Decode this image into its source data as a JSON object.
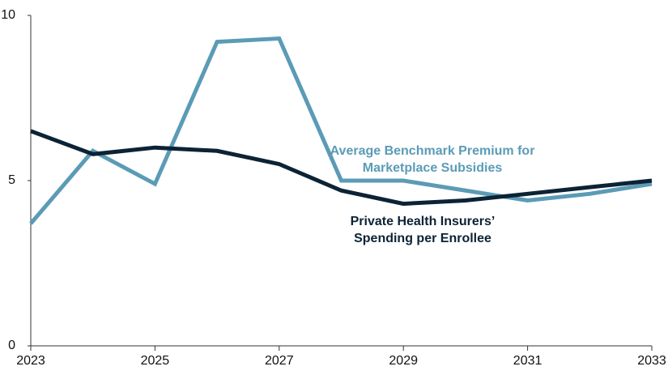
{
  "chart_data": {
    "type": "line",
    "x": [
      2023,
      2024,
      2025,
      2026,
      2027,
      2028,
      2029,
      2030,
      2031,
      2032,
      2033
    ],
    "series": [
      {
        "name": "Average Benchmark Premium for Marketplace Subsidies",
        "color": "#5b9bb6",
        "values": [
          3.7,
          5.9,
          4.9,
          9.2,
          9.3,
          5.0,
          5.0,
          4.7,
          4.4,
          4.6,
          4.9
        ]
      },
      {
        "name": "Private Health Insurers’ Spending per Enrollee",
        "color": "#0c2335",
        "values": [
          6.5,
          5.8,
          6.0,
          5.9,
          5.5,
          4.7,
          4.3,
          4.4,
          4.6,
          4.8,
          5.0
        ]
      }
    ],
    "xlim": [
      2023,
      2033
    ],
    "xticks": [
      2023,
      2025,
      2027,
      2029,
      2031,
      2033
    ],
    "ylim": [
      0,
      10
    ],
    "yticks": [
      0,
      5,
      10
    ],
    "grid": false
  }
}
